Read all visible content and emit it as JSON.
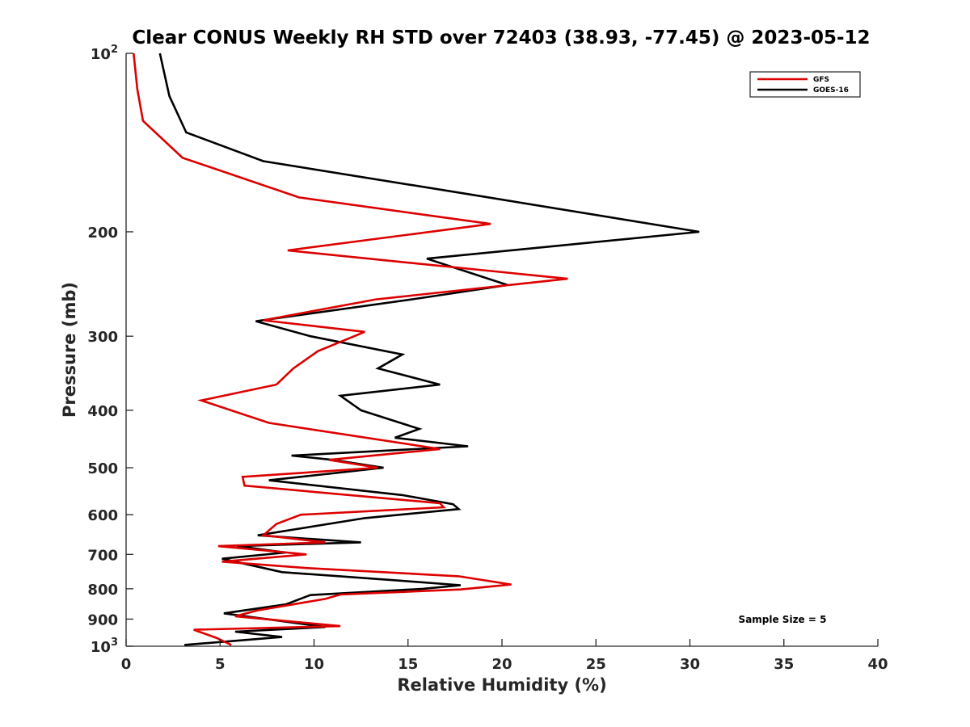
{
  "chart_data": {
    "type": "line",
    "title": "Clear CONUS Weekly RH STD over 72403 (38.93, -77.45) @ 2023-05-12",
    "xlabel": "Relative Humidity (%)",
    "ylabel": "Pressure (mb)",
    "xlim": [
      0,
      40
    ],
    "ylim": [
      100,
      1000
    ],
    "y_scale": "log",
    "y_reversed": true,
    "grid": false,
    "legend_position": "top-right",
    "x_ticks": [
      0,
      5,
      10,
      15,
      20,
      25,
      30,
      35,
      40
    ],
    "y_ticks": [
      {
        "value": 100,
        "label": "10",
        "sup": "2"
      },
      {
        "value": 200,
        "label": "200"
      },
      {
        "value": 300,
        "label": "300"
      },
      {
        "value": 400,
        "label": "400"
      },
      {
        "value": 500,
        "label": "500"
      },
      {
        "value": 600,
        "label": "600"
      },
      {
        "value": 700,
        "label": "700"
      },
      {
        "value": 800,
        "label": "800"
      },
      {
        "value": 900,
        "label": "900"
      },
      {
        "value": 1000,
        "label": "10",
        "sup": "3"
      }
    ],
    "annotation": "Sample Size = 5",
    "series": [
      {
        "name": "GFS",
        "color": "#dd0000",
        "points": [
          [
            0.4,
            100
          ],
          [
            0.6,
            115
          ],
          [
            0.9,
            130
          ],
          [
            3.0,
            150
          ],
          [
            9.2,
            175
          ],
          [
            19.4,
            194
          ],
          [
            8.6,
            215
          ],
          [
            23.5,
            240
          ],
          [
            13.3,
            260
          ],
          [
            7.3,
            282
          ],
          [
            12.7,
            295
          ],
          [
            10.2,
            318
          ],
          [
            8.9,
            340
          ],
          [
            8.0,
            362
          ],
          [
            4.0,
            385
          ],
          [
            7.6,
            420
          ],
          [
            16.7,
            465
          ],
          [
            10.8,
            485
          ],
          [
            13.4,
            500
          ],
          [
            6.2,
            518
          ],
          [
            6.3,
            536
          ],
          [
            16.7,
            574
          ],
          [
            16.9,
            583
          ],
          [
            9.3,
            600
          ],
          [
            8.0,
            622
          ],
          [
            7.3,
            650
          ],
          [
            10.6,
            668
          ],
          [
            4.9,
            678
          ],
          [
            7.5,
            690
          ],
          [
            9.6,
            700
          ],
          [
            5.1,
            720
          ],
          [
            9.6,
            738
          ],
          [
            17.7,
            762
          ],
          [
            20.5,
            787
          ],
          [
            17.8,
            802
          ],
          [
            11.4,
            818
          ],
          [
            10.6,
            832
          ],
          [
            7.0,
            870
          ],
          [
            5.8,
            890
          ],
          [
            11.4,
            925
          ],
          [
            3.6,
            938
          ],
          [
            4.8,
            968
          ],
          [
            5.6,
            995
          ]
        ]
      },
      {
        "name": "GOES-16",
        "color": "#000000",
        "points": [
          [
            1.8,
            100
          ],
          [
            2.3,
            118
          ],
          [
            3.2,
            136
          ],
          [
            7.3,
            152
          ],
          [
            18.3,
            173
          ],
          [
            30.5,
            200
          ],
          [
            16.0,
            222
          ],
          [
            20.3,
            246
          ],
          [
            15.2,
            260
          ],
          [
            6.9,
            283
          ],
          [
            9.8,
            300
          ],
          [
            14.7,
            322
          ],
          [
            13.4,
            340
          ],
          [
            16.7,
            362
          ],
          [
            11.4,
            378
          ],
          [
            12.5,
            400
          ],
          [
            15.6,
            430
          ],
          [
            14.3,
            445
          ],
          [
            18.2,
            460
          ],
          [
            8.8,
            477
          ],
          [
            11.0,
            485
          ],
          [
            13.7,
            500
          ],
          [
            7.6,
            525
          ],
          [
            14.7,
            556
          ],
          [
            17.4,
            576
          ],
          [
            17.7,
            587
          ],
          [
            12.7,
            608
          ],
          [
            7.0,
            650
          ],
          [
            12.5,
            668
          ],
          [
            5.9,
            678
          ],
          [
            8.5,
            695
          ],
          [
            5.1,
            712
          ],
          [
            8.3,
            750
          ],
          [
            14.5,
            775
          ],
          [
            17.8,
            789
          ],
          [
            15.8,
            800
          ],
          [
            9.8,
            820
          ],
          [
            8.5,
            850
          ],
          [
            5.2,
            880
          ],
          [
            10.6,
            928
          ],
          [
            5.8,
            945
          ],
          [
            8.3,
            965
          ],
          [
            3.1,
            995
          ]
        ]
      }
    ]
  }
}
